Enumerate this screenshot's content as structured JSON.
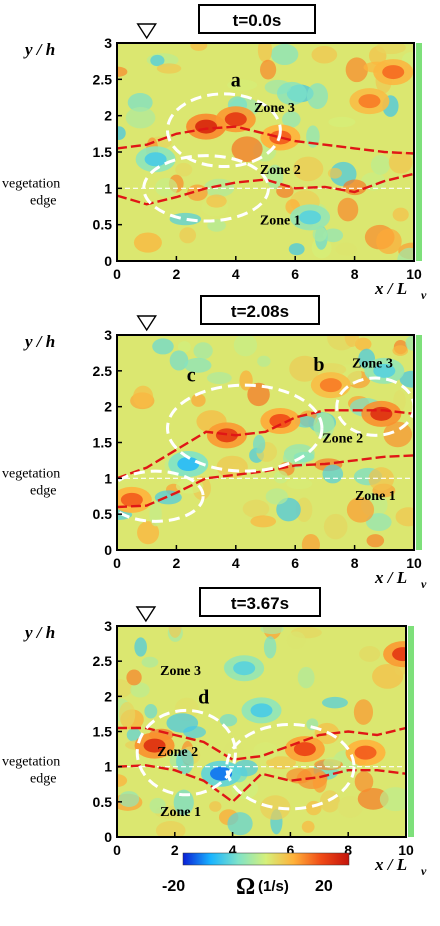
{
  "panels": [
    {
      "time_label": "t=0.0s",
      "zones": [
        "Zone 3",
        "Zone 2",
        "Zone 1"
      ],
      "circle_labels": [
        "a"
      ]
    },
    {
      "time_label": "t=2.08s",
      "zones": [
        "Zone 3",
        "Zone 2",
        "Zone 1"
      ],
      "circle_labels": [
        "c",
        "b"
      ]
    },
    {
      "time_label": "t=3.67s",
      "zones": [
        "Zone 3",
        "Zone 2",
        "Zone 1"
      ],
      "circle_labels": [
        "d"
      ]
    }
  ],
  "axis": {
    "ylabel": "y / h",
    "xlabel": "x / L",
    "xlabel_sub": "v",
    "veg_label_line1": "vegetation",
    "veg_label_line2": "edge"
  },
  "colorbar": {
    "min_label": "-20",
    "max_label": "20",
    "symbol": "Ω",
    "unit": "(1/s)",
    "colors": [
      "#0a1fd6",
      "#19b4ff",
      "#7fe3c8",
      "#d5f07a",
      "#ffb13a",
      "#f04a16",
      "#c4140c"
    ]
  },
  "chart_data": [
    {
      "type": "heatmap",
      "title": "t=0.0s",
      "xlabel": "x / L_v",
      "ylabel": "y / h",
      "xlim": [
        0,
        10
      ],
      "ylim": [
        0,
        3
      ],
      "xticks": [
        0,
        2,
        4,
        6,
        8,
        10
      ],
      "yticks": [
        0,
        0.5,
        1,
        1.5,
        2,
        2.5,
        3
      ],
      "vegetation_edge_y": 1.0,
      "zones": [
        {
          "label": "Zone 3",
          "x": 5.3,
          "y": 2.05
        },
        {
          "label": "Zone 2",
          "x": 5.5,
          "y": 1.2
        },
        {
          "label": "Zone 1",
          "x": 5.5,
          "y": 0.5
        }
      ],
      "annotations": [
        {
          "label": "a",
          "x": 4.0,
          "y": 2.4
        }
      ],
      "ellipses": [
        {
          "cx": 3.6,
          "cy": 1.8,
          "rx": 1.9,
          "ry": 0.5
        },
        {
          "cx": 3.0,
          "cy": 1.0,
          "rx": 2.1,
          "ry": 0.45
        }
      ],
      "series": [
        {
          "role": "upper-interface",
          "x": [
            0,
            1,
            2,
            3,
            4,
            5,
            6,
            7,
            8,
            9,
            10
          ],
          "y": [
            1.55,
            1.6,
            1.75,
            1.82,
            1.85,
            1.75,
            1.65,
            1.6,
            1.55,
            1.5,
            1.48
          ]
        },
        {
          "role": "lower-interface",
          "x": [
            0,
            1,
            2,
            3,
            4,
            5,
            6,
            7,
            8,
            9,
            10
          ],
          "y": [
            0.9,
            0.78,
            0.88,
            1.0,
            1.08,
            1.12,
            1.0,
            1.02,
            0.95,
            1.1,
            1.2
          ]
        }
      ],
      "hotspots": [
        {
          "x": 3.0,
          "y": 1.85,
          "v": 17
        },
        {
          "x": 4.0,
          "y": 1.95,
          "v": 15
        },
        {
          "x": 5.5,
          "y": 1.7,
          "v": 12
        },
        {
          "x": 8.5,
          "y": 2.2,
          "v": 10
        },
        {
          "x": 1.3,
          "y": 1.4,
          "v": -10
        },
        {
          "x": 6.5,
          "y": 0.6,
          "v": -9
        },
        {
          "x": 9.3,
          "y": 2.6,
          "v": 11
        }
      ]
    },
    {
      "type": "heatmap",
      "title": "t=2.08s",
      "xlabel": "x / L_v",
      "ylabel": "y / h",
      "xlim": [
        0,
        10
      ],
      "ylim": [
        0,
        3
      ],
      "xticks": [
        0,
        2,
        4,
        6,
        8,
        10
      ],
      "yticks": [
        0,
        0.5,
        1,
        1.5,
        2,
        2.5,
        3
      ],
      "vegetation_edge_y": 1.0,
      "zones": [
        {
          "label": "Zone 3",
          "x": 8.6,
          "y": 2.55
        },
        {
          "label": "Zone 2",
          "x": 7.6,
          "y": 1.5
        },
        {
          "label": "Zone 1",
          "x": 8.7,
          "y": 0.7
        }
      ],
      "annotations": [
        {
          "label": "c",
          "x": 2.5,
          "y": 2.35
        },
        {
          "label": "b",
          "x": 6.8,
          "y": 2.5
        }
      ],
      "ellipses": [
        {
          "cx": 4.3,
          "cy": 1.7,
          "rx": 2.6,
          "ry": 0.6
        },
        {
          "cx": 8.7,
          "cy": 2.0,
          "rx": 1.3,
          "ry": 0.4
        },
        {
          "cx": 1.3,
          "cy": 0.75,
          "rx": 1.6,
          "ry": 0.35
        }
      ],
      "series": [
        {
          "role": "upper-interface",
          "x": [
            0,
            1,
            2,
            3,
            4,
            5,
            6,
            7,
            8,
            9,
            10
          ],
          "y": [
            1.0,
            1.15,
            1.4,
            1.65,
            1.6,
            1.65,
            1.85,
            1.95,
            1.95,
            1.95,
            1.9
          ]
        },
        {
          "role": "lower-interface",
          "x": [
            0,
            1,
            2,
            3,
            4,
            5,
            6,
            7,
            8,
            9,
            10
          ],
          "y": [
            0.6,
            0.62,
            0.8,
            1.0,
            1.05,
            1.1,
            1.18,
            1.2,
            1.25,
            1.3,
            1.32
          ]
        }
      ],
      "hotspots": [
        {
          "x": 3.7,
          "y": 1.6,
          "v": 15
        },
        {
          "x": 5.5,
          "y": 1.8,
          "v": 13
        },
        {
          "x": 8.9,
          "y": 1.9,
          "v": 16
        },
        {
          "x": 0.5,
          "y": 0.7,
          "v": 12
        },
        {
          "x": 7.2,
          "y": 2.3,
          "v": 10
        },
        {
          "x": 2.4,
          "y": 1.2,
          "v": -12
        },
        {
          "x": 9.0,
          "y": 2.5,
          "v": -9
        }
      ]
    },
    {
      "type": "heatmap",
      "title": "t=3.67s",
      "xlabel": "x / L_v",
      "ylabel": "y / h",
      "xlim": [
        0,
        10
      ],
      "ylim": [
        0,
        3
      ],
      "xticks": [
        0,
        2,
        4,
        6,
        8,
        10
      ],
      "yticks": [
        0,
        0.5,
        1,
        1.5,
        2,
        2.5,
        3
      ],
      "vegetation_edge_y": 1.0,
      "zones": [
        {
          "label": "Zone 3",
          "x": 2.2,
          "y": 2.3
        },
        {
          "label": "Zone 2",
          "x": 2.1,
          "y": 1.15
        },
        {
          "label": "Zone 1",
          "x": 2.2,
          "y": 0.3
        }
      ],
      "annotations": [
        {
          "label": "d",
          "x": 3.0,
          "y": 1.9
        }
      ],
      "ellipses": [
        {
          "cx": 2.4,
          "cy": 1.2,
          "rx": 1.7,
          "ry": 0.6
        },
        {
          "cx": 6.0,
          "cy": 1.0,
          "rx": 2.2,
          "ry": 0.6
        }
      ],
      "series": [
        {
          "role": "upper-interface",
          "x": [
            0,
            1,
            2,
            3,
            4,
            5,
            6,
            7,
            8,
            9,
            10
          ],
          "y": [
            1.55,
            1.55,
            1.45,
            1.35,
            1.1,
            1.15,
            1.3,
            1.45,
            1.5,
            1.45,
            1.55
          ]
        },
        {
          "role": "lower-interface",
          "x": [
            0,
            1,
            2,
            3,
            4,
            5,
            6,
            7,
            8,
            9,
            10
          ],
          "y": [
            1.0,
            1.02,
            0.95,
            0.8,
            0.5,
            0.9,
            0.8,
            0.85,
            0.95,
            0.95,
            0.9
          ]
        }
      ],
      "hotspots": [
        {
          "x": 1.3,
          "y": 1.3,
          "v": 16
        },
        {
          "x": 6.5,
          "y": 1.25,
          "v": 14
        },
        {
          "x": 8.6,
          "y": 1.2,
          "v": 12
        },
        {
          "x": 9.9,
          "y": 2.6,
          "v": 15
        },
        {
          "x": 3.6,
          "y": 0.9,
          "v": -16
        },
        {
          "x": 5.0,
          "y": 1.8,
          "v": -10
        },
        {
          "x": 4.4,
          "y": 2.4,
          "v": -9
        }
      ]
    }
  ]
}
